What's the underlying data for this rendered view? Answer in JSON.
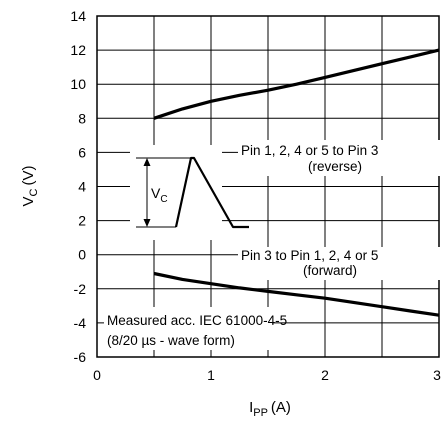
{
  "chart_data": {
    "type": "line",
    "xlabel": {
      "main": "I",
      "sub": "PP",
      "unit": "(A)"
    },
    "ylabel": {
      "main": "V",
      "sub": "C",
      "unit": "(V)"
    },
    "xlim": [
      0,
      3
    ],
    "ylim": [
      -6,
      14
    ],
    "xticks": [
      0,
      1,
      2,
      3
    ],
    "yticks": [
      -6,
      -4,
      -2,
      0,
      2,
      4,
      6,
      8,
      10,
      12,
      14
    ],
    "grid": true,
    "series": [
      {
        "x": [
          0.5,
          0.75,
          1.0,
          1.25,
          1.5,
          1.75,
          2.0,
          2.25,
          2.5,
          2.75,
          3.0
        ],
        "y": [
          8.0,
          8.55,
          9.0,
          9.35,
          9.65,
          10.0,
          10.4,
          10.8,
          11.2,
          11.6,
          12.0
        ]
      },
      {
        "x": [
          0.5,
          0.75,
          1.0,
          1.25,
          1.5,
          1.75,
          2.0,
          2.25,
          2.5,
          2.75,
          3.0
        ],
        "y": [
          -1.1,
          -1.45,
          -1.7,
          -1.95,
          -2.15,
          -2.35,
          -2.55,
          -2.8,
          -3.05,
          -3.3,
          -3.55
        ]
      }
    ],
    "annotations": [
      {
        "lines": [
          "Pin 1, 2, 4 or 5 to Pin 3",
          "(reverse)"
        ]
      },
      {
        "lines": [
          "Pin 3 to Pin 1, 2, 4 or 5",
          "(forward)"
        ]
      },
      {
        "lines": [
          "Measured acc. IEC 61000-4-5",
          "(8/20 µs - wave form)"
        ]
      }
    ],
    "inset": {
      "label_main": "V",
      "label_sub": "C"
    }
  }
}
